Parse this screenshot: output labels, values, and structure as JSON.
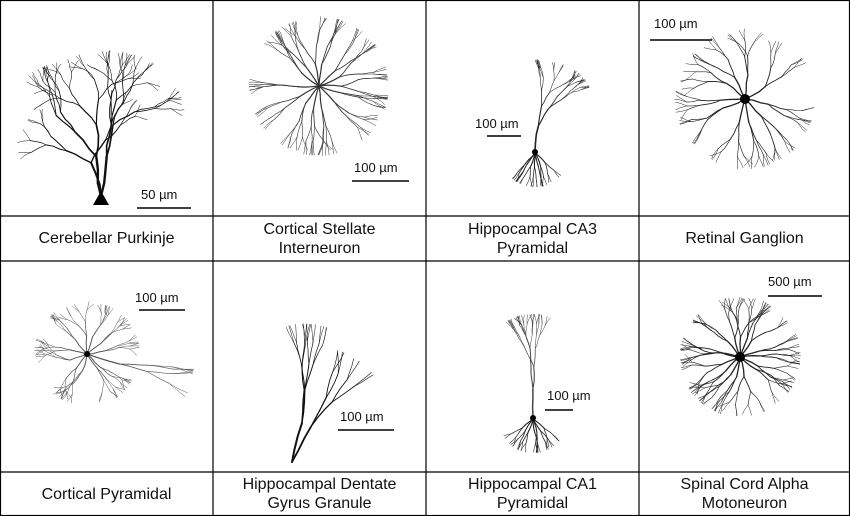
{
  "panels": [
    {
      "label": "Cerebellar Purkinje",
      "scale": "50 µm",
      "icon": "purkinje-neuron-icon"
    },
    {
      "label": "Cortical Stellate\nInterneuron",
      "scale": "100 µm",
      "icon": "stellate-neuron-icon"
    },
    {
      "label": "Hippocampal CA3\nPyramidal",
      "scale": "100 µm",
      "icon": "ca3-pyramidal-neuron-icon"
    },
    {
      "label": "Retinal Ganglion",
      "scale": "100 µm",
      "icon": "retinal-ganglion-neuron-icon"
    },
    {
      "label": "Cortical Pyramidal",
      "scale": "100 µm",
      "icon": "cortical-pyramidal-neuron-icon"
    },
    {
      "label": "Hippocampal Dentate\nGyrus Granule",
      "scale": "100 µm",
      "icon": "dentate-granule-neuron-icon"
    },
    {
      "label": "Hippocampal CA1\nPyramidal",
      "scale": "100 µm",
      "icon": "ca1-pyramidal-neuron-icon"
    },
    {
      "label": "Spinal Cord Alpha\nMotoneuron",
      "scale": "500 µm",
      "icon": "motoneuron-icon"
    }
  ]
}
